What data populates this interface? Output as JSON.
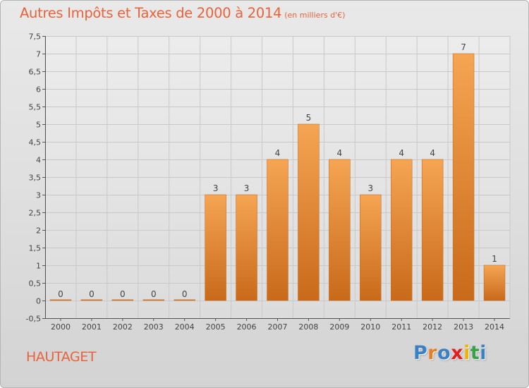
{
  "header": {
    "title": "Autres Impôts et Taxes de 2000 à 2014",
    "unit": "(en milliers d'€)"
  },
  "commune": "HAUTAGET",
  "logo": {
    "text": "Proxiti",
    "letters": [
      {
        "ch": "P",
        "color": "#3b7fc4"
      },
      {
        "ch": "r",
        "color": "#e67e22"
      },
      {
        "ch": "o",
        "color": "#3b7fc4"
      },
      {
        "ch": "x",
        "color": "#e02020"
      },
      {
        "ch": "i",
        "color": "#f0b400"
      },
      {
        "ch": "t",
        "color": "#3aa04a"
      },
      {
        "ch": "i",
        "color": "#3b7fc4"
      }
    ]
  },
  "colors": {
    "title": "#e8623a",
    "bar_top": "#f5a553",
    "bar_bottom": "#c86a1a",
    "grid": "#c9c9c9",
    "label": "#444444"
  },
  "chart_data": {
    "type": "bar",
    "categories": [
      "2000",
      "2001",
      "2002",
      "2003",
      "2004",
      "2005",
      "2006",
      "2007",
      "2008",
      "2009",
      "2010",
      "2011",
      "2012",
      "2013",
      "2014"
    ],
    "values": [
      0,
      0,
      0,
      0,
      0,
      3,
      3,
      4,
      5,
      4,
      3,
      4,
      4,
      7,
      1
    ],
    "data_labels": [
      "0",
      "0",
      "0",
      "0",
      "0",
      "3",
      "3",
      "4",
      "5",
      "4",
      "3",
      "4",
      "4",
      "7",
      "1"
    ],
    "ylim": [
      -0.5,
      7.5
    ],
    "yticks": [
      -0.5,
      0,
      0.5,
      1,
      1.5,
      2,
      2.5,
      3,
      3.5,
      4,
      4.5,
      5,
      5.5,
      6,
      6.5,
      7,
      7.5
    ],
    "ytick_labels": [
      "-0,5",
      "0",
      "0,5",
      "1",
      "1,5",
      "2",
      "2,5",
      "3",
      "3,5",
      "4",
      "4,5",
      "5",
      "5,5",
      "6",
      "6,5",
      "7",
      "7,5"
    ],
    "grid": true,
    "xlabel": "",
    "ylabel": ""
  }
}
